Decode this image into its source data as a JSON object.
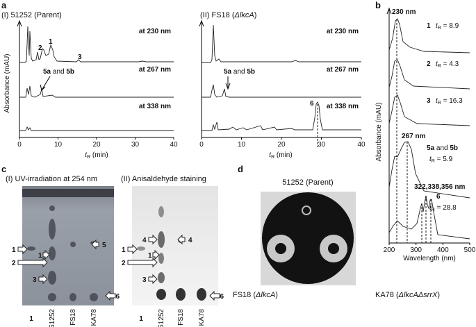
{
  "panel_a": {
    "label": "a",
    "left": {
      "title": "(I) 51252 (Parent)",
      "peak_1": "1",
      "peak_2": "2",
      "peak_3": "3",
      "annot_a": "5a",
      "annot_and": " and ",
      "annot_b": "5b"
    },
    "right": {
      "title_pre": "(II) FS18 (",
      "title_it": "ΔlkcA",
      "title_post": ")",
      "annot_a": "5a",
      "annot_and": " and ",
      "annot_b": "5b",
      "peak_6": "6"
    },
    "wavelengths": [
      "at 230 nm",
      "at 267 nm",
      "at 338 nm"
    ],
    "axis": {
      "xlim": [
        0,
        40
      ],
      "xticks": [
        0,
        10,
        20,
        30,
        40
      ],
      "xlabel_t": "t",
      "xlabel_sub": "R",
      "xlabel_rest": " (min)",
      "ylabel": "Absorbance (mAU)"
    }
  },
  "panel_b": {
    "label": "b",
    "peak_230": "230 nm",
    "peak_267": "267 nm",
    "peak_6": "322,338,356 nm",
    "compounds": [
      {
        "id": "1",
        "t": "t",
        "sub": "R",
        "rest": " = 8.9"
      },
      {
        "id": "2",
        "t": "t",
        "sub": "R",
        "rest": " = 4.3"
      },
      {
        "id": "3",
        "t": "t",
        "sub": "R",
        "rest": " = 16.3"
      },
      {
        "id_a": "5a",
        "id_and": " and ",
        "id_b": "5b",
        "t": "t",
        "sub": "R",
        "rest": " = 5.9"
      },
      {
        "id": "6",
        "t": "t",
        "sub": "R",
        "rest": " = 28.8"
      }
    ],
    "axis": {
      "xlim": [
        200,
        500
      ],
      "xticks": [
        200,
        300,
        400,
        500
      ],
      "xlabel": "Wavelength (nm)",
      "ylabel": "Absorbance (mAU)"
    }
  },
  "panel_c": {
    "label": "c",
    "title_1": "(I) UV-irradiation at 254 nm",
    "title_2": "(II) Anisaldehyde staining",
    "lanes": [
      "1",
      "51252",
      "FS18",
      "KA78"
    ],
    "gel_1_marks": [
      "1",
      "2",
      "1",
      "3",
      "5",
      "6"
    ],
    "gel_2_marks": [
      "1",
      "2",
      "4",
      "1",
      "3",
      "4",
      "6"
    ]
  },
  "panel_d": {
    "label": "d",
    "top": "51252 (Parent)",
    "left_pre": "FS18 (",
    "left_it": "ΔlkcA",
    "left_post": ")",
    "right_pre": "KA78 (",
    "right_it": "ΔlkcAΔsrrX",
    "right_post": ")"
  }
}
